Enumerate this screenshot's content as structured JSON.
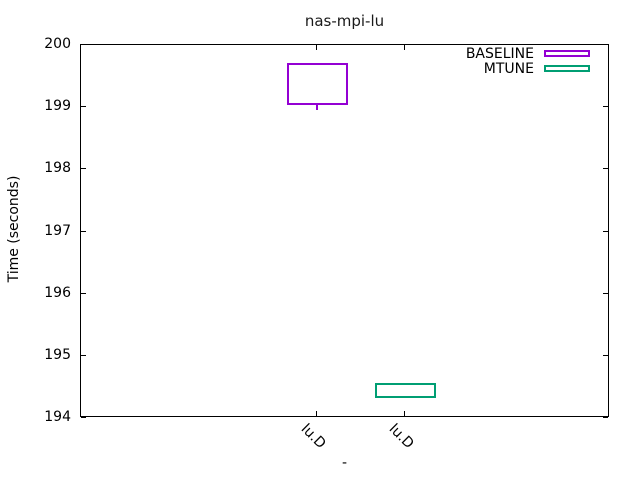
{
  "chart_data": {
    "type": "candlestick",
    "title": "nas-mpi-lu",
    "xlabel": "-",
    "ylabel": "Time (seconds)",
    "ylim": [
      194,
      200
    ],
    "yticks": [
      194,
      195,
      196,
      197,
      198,
      199,
      200
    ],
    "categories": [
      "lu.D",
      "lu.D"
    ],
    "grid": false,
    "legend_position": "top-right-inside",
    "series": [
      {
        "name": "BASELINE",
        "color": "#9400d3",
        "category": "lu.D",
        "box_low": 199.03,
        "box_high": 199.71,
        "whisker_low": 198.96,
        "whisker_high": 199.71
      },
      {
        "name": "MTUNE",
        "color": "#009e73",
        "category": "lu.D",
        "box_low": 194.32,
        "box_high": 194.57,
        "whisker_low": 194.32,
        "whisker_high": 194.57
      }
    ]
  }
}
